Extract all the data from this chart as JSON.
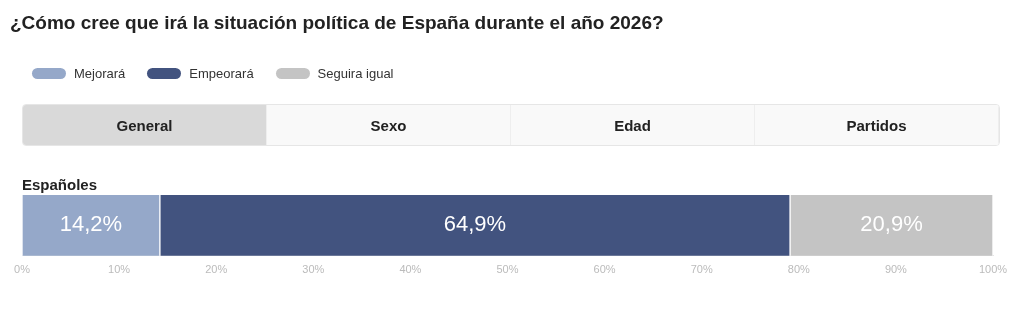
{
  "chart_data": {
    "type": "bar",
    "title": "¿Cómo cree que irá la situación política de España durante el año 2026?",
    "orientation": "horizontal",
    "stacked": true,
    "categories": [
      "Españoles"
    ],
    "series": [
      {
        "name": "Mejorará",
        "color": "#95a8c9",
        "values": [
          14.2
        ],
        "value_labels": [
          "14,2%"
        ]
      },
      {
        "name": "Empeorará",
        "color": "#42537f",
        "values": [
          64.9
        ],
        "value_labels": [
          "64,9%"
        ]
      },
      {
        "name": "Seguira igual",
        "color": "#c4c4c4",
        "values": [
          20.9
        ],
        "value_labels": [
          "20,9%"
        ]
      }
    ],
    "xlim": [
      0,
      100
    ],
    "xticks": [
      {
        "value": 0,
        "label": "0%"
      },
      {
        "value": 10,
        "label": "10%"
      },
      {
        "value": 20,
        "label": "20%"
      },
      {
        "value": 30,
        "label": "30%"
      },
      {
        "value": 40,
        "label": "40%"
      },
      {
        "value": 50,
        "label": "50%"
      },
      {
        "value": 60,
        "label": "60%"
      },
      {
        "value": 70,
        "label": "70%"
      },
      {
        "value": 80,
        "label": "80%"
      },
      {
        "value": 90,
        "label": "90%"
      },
      {
        "value": 100,
        "label": "100%"
      }
    ],
    "legend": "top left",
    "grid": false,
    "annotations": [
      "General",
      "Sexo",
      "Edad",
      "Partidos"
    ]
  }
}
